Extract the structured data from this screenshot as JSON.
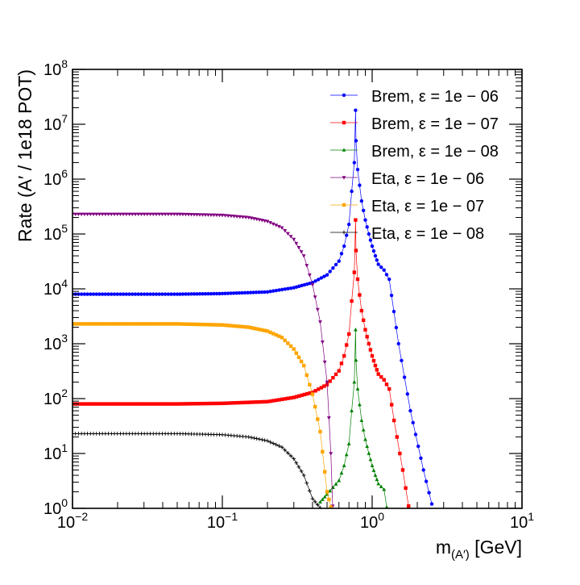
{
  "chart_data": {
    "type": "line",
    "xlabel": {
      "base": "m",
      "sub": "(A′)",
      "unit": " [GeV]"
    },
    "ylabel": "Rate (A′ / 1e18 POT)",
    "xscale": "log",
    "yscale": "log",
    "xlim": [
      0.01,
      10
    ],
    "ylim": [
      1,
      100000000
    ],
    "x_ticks": [
      {
        "value": 0.01,
        "base": "10",
        "exp": "−2"
      },
      {
        "value": 0.1,
        "base": "10",
        "exp": "−1"
      },
      {
        "value": 1,
        "base": "10",
        "exp": "0"
      },
      {
        "value": 10,
        "base": "10",
        "exp": "1"
      }
    ],
    "y_ticks": [
      {
        "value": 1,
        "base": "10",
        "exp": "0"
      },
      {
        "value": 10,
        "base": "10",
        "exp": "1"
      },
      {
        "value": 100,
        "base": "10",
        "exp": "2"
      },
      {
        "value": 1000,
        "base": "10",
        "exp": "3"
      },
      {
        "value": 10000,
        "base": "10",
        "exp": "4"
      },
      {
        "value": 100000,
        "base": "10",
        "exp": "5"
      },
      {
        "value": 1000000,
        "base": "10",
        "exp": "6"
      },
      {
        "value": 10000000,
        "base": "10",
        "exp": "7"
      },
      {
        "value": 100000000,
        "base": "10",
        "exp": "8"
      }
    ],
    "grid": false,
    "legend_position": "top-right",
    "series": [
      {
        "name": "Brem, ε = 1e − 06",
        "color": "#0000ff",
        "marker": "circle",
        "x": [
          0.01,
          0.05,
          0.1,
          0.2,
          0.3,
          0.4,
          0.5,
          0.6,
          0.65,
          0.7,
          0.73,
          0.76,
          0.775,
          0.78,
          0.8,
          0.85,
          0.9,
          0.95,
          1.0,
          1.05,
          1.1,
          1.2,
          1.3,
          1.5,
          1.8,
          2.2,
          2.5
        ],
        "y": [
          8000,
          8000,
          8200,
          8800,
          10500,
          13000,
          18000,
          32000,
          60000,
          150000,
          600000,
          2000000,
          18000000,
          5000000,
          1500000,
          400000,
          180000,
          100000,
          60000,
          40000,
          28000,
          22000,
          15000,
          1000,
          60,
          5,
          1.2
        ]
      },
      {
        "name": "Brem, ε = 1e − 07",
        "color": "#ff0000",
        "marker": "square",
        "x": [
          0.01,
          0.05,
          0.1,
          0.2,
          0.3,
          0.4,
          0.5,
          0.6,
          0.65,
          0.7,
          0.73,
          0.76,
          0.775,
          0.78,
          0.8,
          0.85,
          0.9,
          0.95,
          1.0,
          1.05,
          1.1,
          1.2,
          1.3,
          1.4,
          1.6,
          1.75
        ],
        "y": [
          80,
          80,
          82,
          88,
          105,
          130,
          180,
          320,
          600,
          1500,
          6000,
          20000,
          180000,
          50000,
          15000,
          4000,
          1800,
          1000,
          600,
          400,
          280,
          220,
          150,
          40,
          5,
          1.1
        ]
      },
      {
        "name": "Brem, ε = 1e − 08",
        "color": "#008000",
        "marker": "triangle",
        "x": [
          0.45,
          0.5,
          0.6,
          0.65,
          0.7,
          0.73,
          0.76,
          0.775,
          0.78,
          0.8,
          0.85,
          0.9,
          0.95,
          1.0,
          1.05,
          1.1,
          1.2,
          1.25
        ],
        "y": [
          1.3,
          1.8,
          3.2,
          6,
          15,
          60,
          200,
          1800,
          500,
          150,
          40,
          18,
          10,
          6,
          4,
          2.8,
          2.2,
          1.05
        ]
      },
      {
        "name": "Eta, ε = 1e − 06",
        "color": "#800080",
        "marker": "triangle-down",
        "x": [
          0.01,
          0.05,
          0.1,
          0.15,
          0.2,
          0.25,
          0.3,
          0.35,
          0.4,
          0.45,
          0.5,
          0.53,
          0.545
        ],
        "y": [
          230000,
          230000,
          220000,
          200000,
          170000,
          130000,
          80000,
          40000,
          12000,
          2500,
          200,
          10,
          1.1
        ]
      },
      {
        "name": "Eta, ε = 1e − 07",
        "color": "#ffa500",
        "marker": "square",
        "x": [
          0.01,
          0.05,
          0.1,
          0.15,
          0.2,
          0.25,
          0.3,
          0.35,
          0.4,
          0.45,
          0.5,
          0.53
        ],
        "y": [
          2300,
          2300,
          2200,
          2000,
          1700,
          1300,
          800,
          400,
          120,
          25,
          2,
          1.05
        ]
      },
      {
        "name": "Eta, ε = 1e − 08",
        "color": "#000000",
        "marker": "plus",
        "x": [
          0.01,
          0.05,
          0.1,
          0.15,
          0.2,
          0.25,
          0.3,
          0.35,
          0.4,
          0.45
        ],
        "y": [
          23,
          23,
          22,
          20,
          17,
          13,
          8,
          4,
          1.5,
          1.02
        ]
      }
    ]
  }
}
